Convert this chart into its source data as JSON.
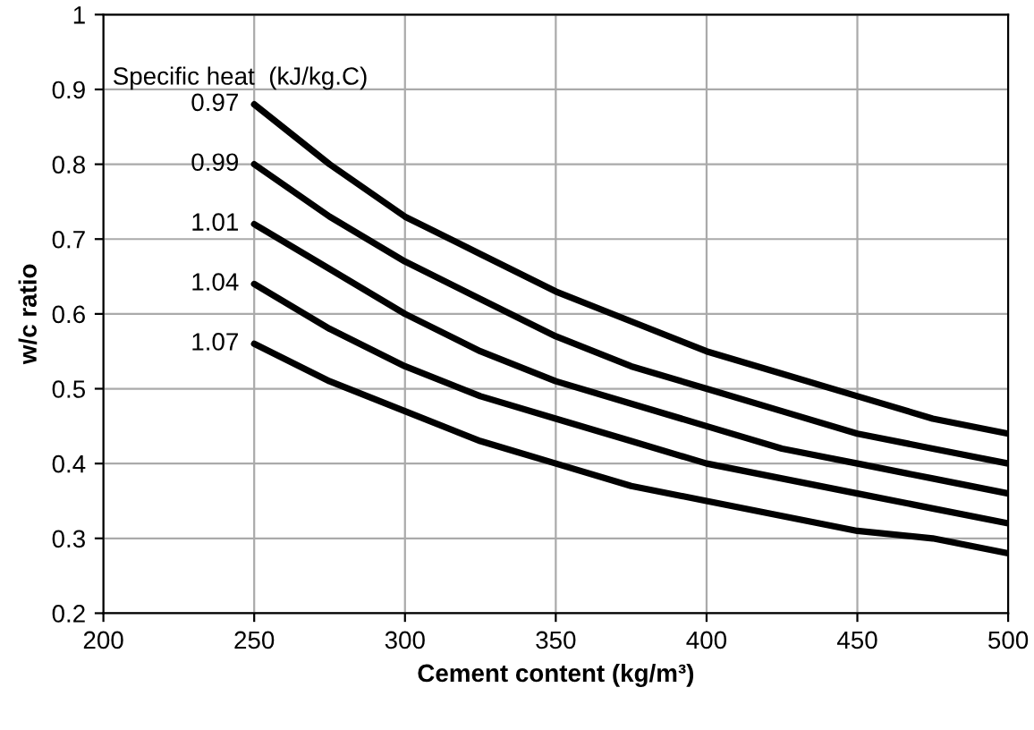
{
  "chart_data": {
    "type": "line",
    "xlabel": "Cement content (kg/m³)",
    "ylabel": "w/c ratio",
    "legend_title": "Specific heat  (kJ/kg.C)",
    "x": [
      250,
      275,
      300,
      325,
      350,
      375,
      400,
      425,
      450,
      475,
      500
    ],
    "series": [
      {
        "name": "0.97",
        "color": "#000000",
        "values": [
          0.88,
          0.8,
          0.73,
          0.68,
          0.63,
          0.59,
          0.55,
          0.52,
          0.49,
          0.46,
          0.44
        ]
      },
      {
        "name": "0.99",
        "color": "#000000",
        "values": [
          0.8,
          0.73,
          0.67,
          0.62,
          0.57,
          0.53,
          0.5,
          0.47,
          0.44,
          0.42,
          0.4
        ]
      },
      {
        "name": "1.01",
        "color": "#000000",
        "values": [
          0.72,
          0.66,
          0.6,
          0.55,
          0.51,
          0.48,
          0.45,
          0.42,
          0.4,
          0.38,
          0.36
        ]
      },
      {
        "name": "1.04",
        "color": "#000000",
        "values": [
          0.64,
          0.58,
          0.53,
          0.49,
          0.46,
          0.43,
          0.4,
          0.38,
          0.36,
          0.34,
          0.32
        ]
      },
      {
        "name": "1.07",
        "color": "#000000",
        "values": [
          0.56,
          0.51,
          0.47,
          0.43,
          0.4,
          0.37,
          0.35,
          0.33,
          0.31,
          0.3,
          0.28
        ]
      }
    ],
    "xlim": [
      200,
      500
    ],
    "xticks": [
      200,
      250,
      300,
      350,
      400,
      450,
      500
    ],
    "ylim": [
      0.2,
      1
    ],
    "yticks": [
      {
        "value": 0.2,
        "label": "0.2"
      },
      {
        "value": 0.3,
        "label": "0.3"
      },
      {
        "value": 0.4,
        "label": "0.4"
      },
      {
        "value": 0.5,
        "label": "0.5"
      },
      {
        "value": 0.6,
        "label": "0.6"
      },
      {
        "value": 0.7,
        "label": "0.7"
      },
      {
        "value": 0.8,
        "label": "0.8"
      },
      {
        "value": 0.9,
        "label": "0.9"
      },
      {
        "value": 1,
        "label": "1"
      }
    ],
    "grid": true,
    "marker": "none",
    "line_style": "solid"
  }
}
